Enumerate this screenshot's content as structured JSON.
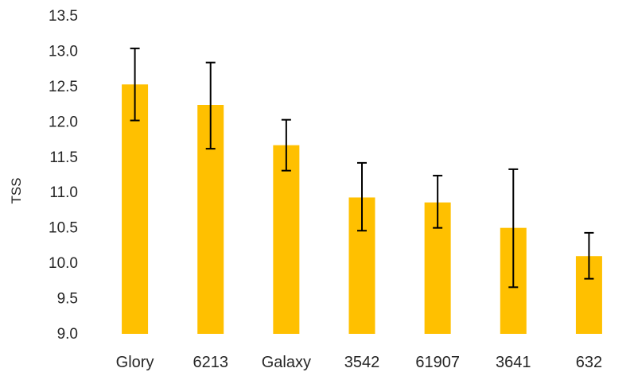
{
  "chart_data": {
    "type": "bar",
    "title": "",
    "xlabel": "",
    "ylabel": "TSS",
    "ylim": [
      9.0,
      13.5
    ],
    "yticks": [
      9.0,
      9.5,
      10.0,
      10.5,
      11.0,
      11.5,
      12.0,
      12.5,
      13.0,
      13.5
    ],
    "ytick_labels": [
      "9.0",
      "9.5",
      "10.0",
      "10.5",
      "11.0",
      "11.5",
      "12.0",
      "12.5",
      "13.0",
      "13.5"
    ],
    "categories": [
      "Glory",
      "6213",
      "Galaxy",
      "3542",
      "61907",
      "3641",
      "632"
    ],
    "values": [
      12.53,
      12.24,
      11.67,
      10.93,
      10.86,
      10.5,
      10.1
    ],
    "error_low": [
      12.02,
      11.62,
      11.31,
      10.46,
      10.5,
      9.66,
      9.78
    ],
    "error_high": [
      13.04,
      12.84,
      12.03,
      11.42,
      11.24,
      11.33,
      10.43
    ],
    "grid": false,
    "legend": "none",
    "bar_color": "#FFC000",
    "error_color": "#000000"
  }
}
